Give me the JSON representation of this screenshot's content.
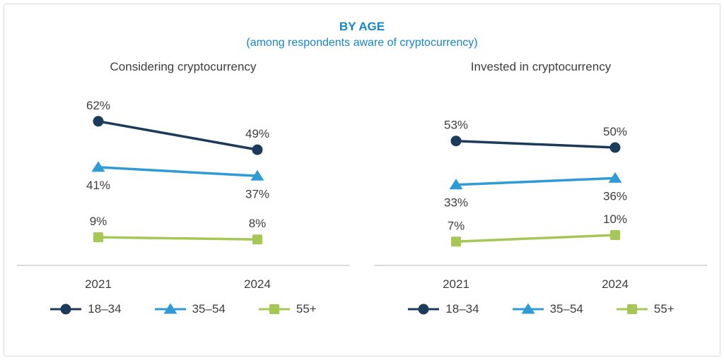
{
  "header": {
    "title": "BY AGE",
    "subtitle": "(among respondents aware of cryptocurrency)"
  },
  "colors": {
    "accent_blue": "#1287c6",
    "navy": "#1c3a5a",
    "blue": "#2e9bd6",
    "green": "#a5c854",
    "text": "#3d3d3d",
    "axis": "#b3b3b3"
  },
  "chart_data": [
    {
      "type": "line",
      "title": "Considering cryptocurrency",
      "x": [
        "2021",
        "2024"
      ],
      "series": [
        {
          "name": "18–34",
          "values": [
            62,
            49
          ],
          "marker": "circle",
          "color_key": "navy",
          "label_position": "above"
        },
        {
          "name": "35–54",
          "values": [
            41,
            37
          ],
          "marker": "triangle",
          "color_key": "blue",
          "label_position": "below"
        },
        {
          "name": "55+",
          "values": [
            9,
            8
          ],
          "marker": "square",
          "color_key": "green",
          "label_position": "above"
        }
      ],
      "ylim": [
        0,
        70
      ],
      "value_suffix": "%",
      "grid": false,
      "legend_position": "bottom"
    },
    {
      "type": "line",
      "title": "Invested in cryptocurrency",
      "x": [
        "2021",
        "2024"
      ],
      "series": [
        {
          "name": "18–34",
          "values": [
            53,
            50
          ],
          "marker": "circle",
          "color_key": "navy",
          "label_position": "above"
        },
        {
          "name": "35–54",
          "values": [
            33,
            36
          ],
          "marker": "triangle",
          "color_key": "blue",
          "label_position": "below"
        },
        {
          "name": "55+",
          "values": [
            7,
            10
          ],
          "marker": "square",
          "color_key": "green",
          "label_position": "above"
        }
      ],
      "ylim": [
        0,
        70
      ],
      "value_suffix": "%",
      "grid": false,
      "legend_position": "bottom"
    }
  ]
}
